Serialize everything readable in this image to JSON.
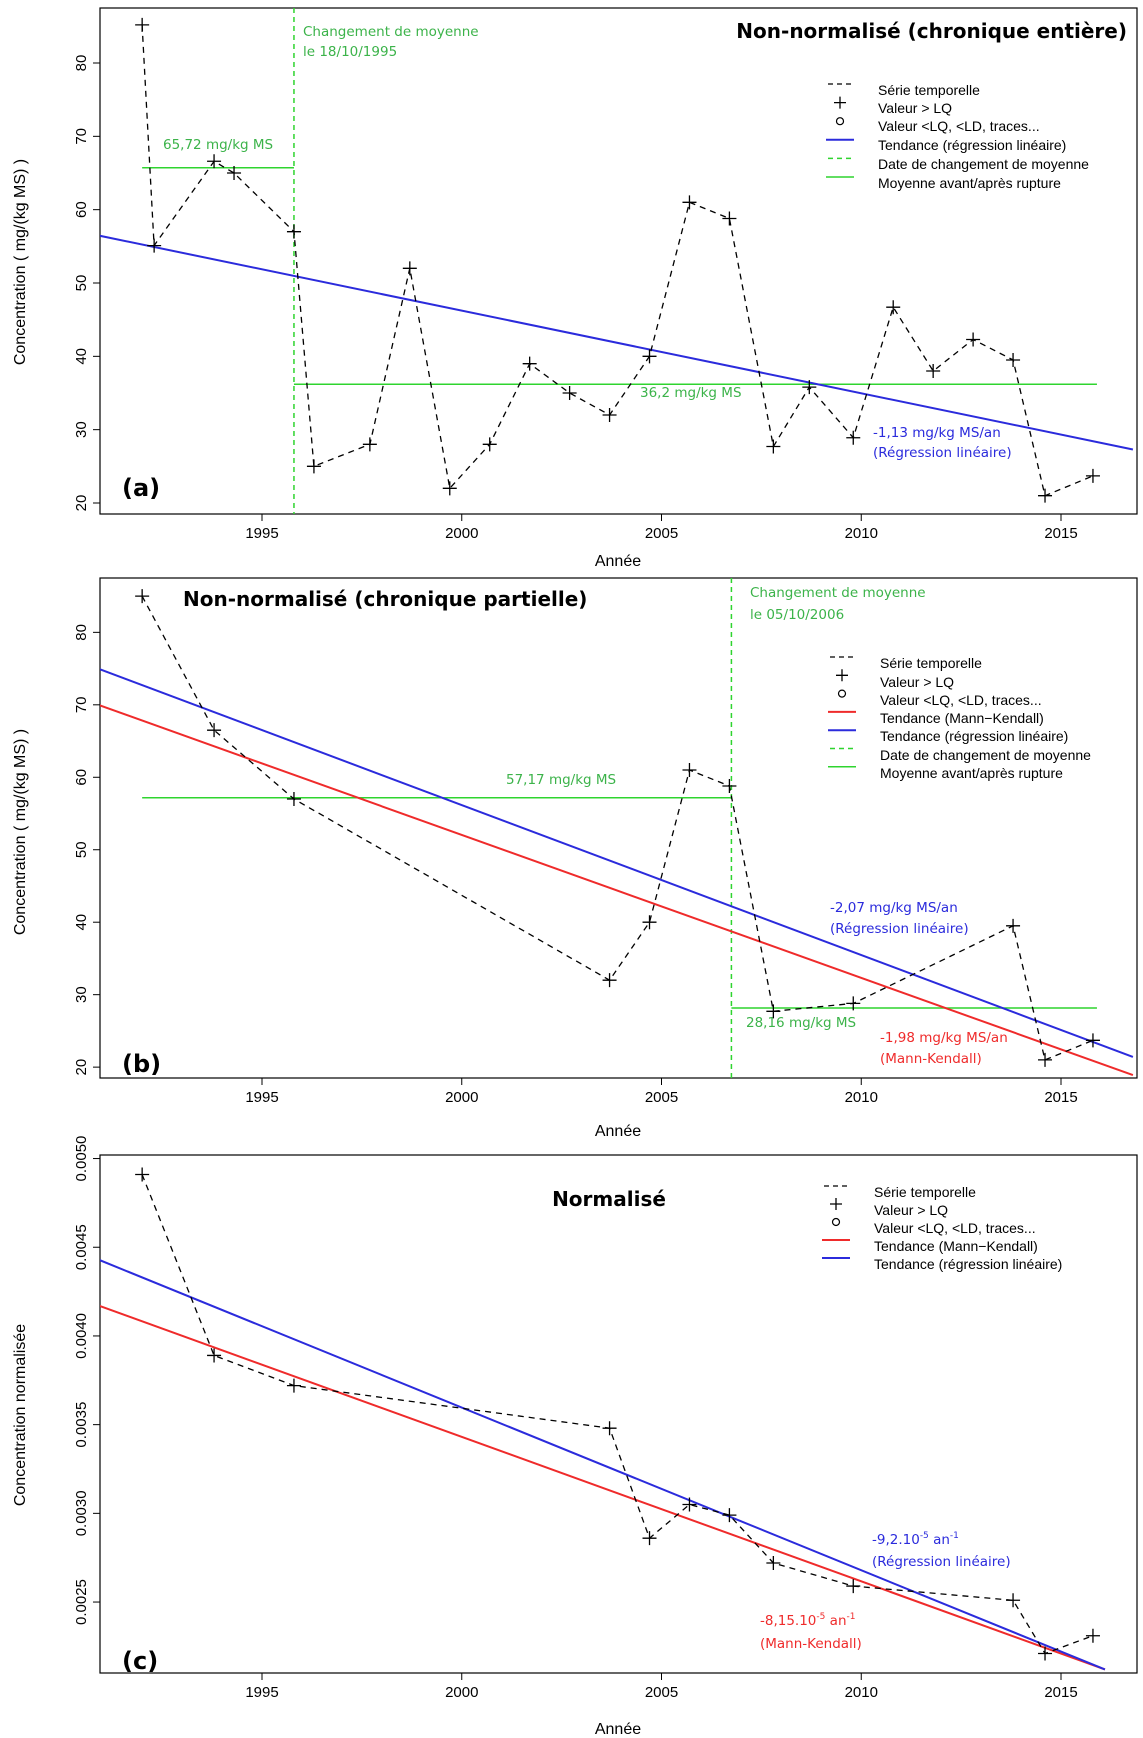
{
  "colors": {
    "series": "#000000",
    "regression": "#2b2bdc",
    "mann_kendall": "#ef2b2b",
    "change_point": "#2fd42f",
    "mean_line": "#2fd42f",
    "annotation_green": "#3cb34a",
    "annotation_blue": "#2b2bdc",
    "annotation_red": "#ef2b2b"
  },
  "chart_data": [
    {
      "type": "line",
      "panel_label": "(a)",
      "title": "Non-normalisé (chronique entière)",
      "xlabel": "Année",
      "ylabel": "Concentration  ( mg/(kg MS) )",
      "xlim": [
        1990.8,
        2016.8
      ],
      "ylim": [
        18.5,
        87.5
      ],
      "xticks": [
        1995,
        2000,
        2005,
        2010,
        2015
      ],
      "yticks": [
        20,
        30,
        40,
        50,
        60,
        70,
        80
      ],
      "ytick_labels": [
        "20",
        "30",
        "40",
        "50",
        "60",
        "70",
        "80"
      ],
      "series": [
        {
          "name": "Série temporelle",
          "x": [
            1992.0,
            1992.3,
            1993.8,
            1994.3,
            1995.8,
            1996.3,
            1997.7,
            1998.7,
            1999.7,
            2000.7,
            2001.7,
            2002.7,
            2003.7,
            2004.7,
            2005.7,
            2006.7,
            2007.8,
            2008.7,
            2009.8,
            2010.8,
            2011.8,
            2012.8,
            2013.8,
            2014.6,
            2015.8
          ],
          "y": [
            85.2,
            55.1,
            66.6,
            65.0,
            57.0,
            25.0,
            28.0,
            52.0,
            22.0,
            28.0,
            39.0,
            35.0,
            32.0,
            40.0,
            61.0,
            58.8,
            27.7,
            35.8,
            28.9,
            46.7,
            38.0,
            42.3,
            39.5,
            21.0,
            23.7
          ]
        }
      ],
      "regression": {
        "x": [
          1990.8,
          2016.8
        ],
        "y": [
          56.6,
          27.3
        ]
      },
      "change_point": {
        "x": 1995.8,
        "label_line1": "Changement de moyenne",
        "label_line2": "le 18/10/1995"
      },
      "means": [
        {
          "x": [
            1992.0,
            1995.8
          ],
          "y": 65.72,
          "label": "65,72 mg/kg MS"
        },
        {
          "x": [
            1995.8,
            2015.9
          ],
          "y": 36.2,
          "label": "36,2 mg/kg MS"
        }
      ],
      "slope_labels": [
        {
          "line1": "-1,13 mg/kg MS/an",
          "line2": "(Régression linéaire)",
          "color": "blue"
        }
      ],
      "legend": [
        {
          "label": "Série temporelle",
          "kind": "dash-black"
        },
        {
          "label": "Valeur > LQ",
          "kind": "plus"
        },
        {
          "label": "Valeur <LQ, <LD, traces...",
          "kind": "circle"
        },
        {
          "label": "Tendance (régression linéaire)",
          "kind": "line-blue"
        },
        {
          "label": "Date de changement de moyenne",
          "kind": "dash-green"
        },
        {
          "label": "Moyenne avant/après rupture",
          "kind": "line-green"
        }
      ]
    },
    {
      "type": "line",
      "panel_label": "(b)",
      "title": "Non-normalisé (chronique partielle)",
      "xlabel": "Année",
      "ylabel": "Concentration  ( mg/(kg MS) )",
      "xlim": [
        1990.8,
        2016.8
      ],
      "ylim": [
        18.5,
        87.5
      ],
      "xticks": [
        1995,
        2000,
        2005,
        2010,
        2015
      ],
      "yticks": [
        20,
        30,
        40,
        50,
        60,
        70,
        80
      ],
      "ytick_labels": [
        "20",
        "30",
        "40",
        "50",
        "60",
        "70",
        "80"
      ],
      "series": [
        {
          "name": "Série temporelle",
          "x": [
            1992.0,
            1993.8,
            1995.8,
            2003.7,
            2004.7,
            2005.7,
            2006.7,
            2007.8,
            2009.8,
            2013.8,
            2014.6,
            2015.8
          ],
          "y": [
            85.0,
            66.5,
            57.0,
            32.0,
            40.0,
            61.0,
            58.8,
            27.7,
            28.8,
            39.5,
            21.0,
            23.7
          ]
        }
      ],
      "regression": {
        "x": [
          1990.8,
          2016.8
        ],
        "y": [
          75.2,
          21.4
        ]
      },
      "mann_kendall": {
        "x": [
          1990.8,
          2016.8
        ],
        "y": [
          70.2,
          18.9
        ]
      },
      "change_point": {
        "x": 2006.75,
        "label_line1": "Changement de moyenne",
        "label_line2": "le 05/10/2006"
      },
      "means": [
        {
          "x": [
            1992.0,
            2006.75
          ],
          "y": 57.17,
          "label": "57,17 mg/kg MS"
        },
        {
          "x": [
            2006.75,
            2015.9
          ],
          "y": 28.16,
          "label": "28,16 mg/kg MS"
        }
      ],
      "slope_labels": [
        {
          "line1": "-2,07 mg/kg MS/an",
          "line2": "(Régression linéaire)",
          "color": "blue"
        },
        {
          "line1": "-1,98 mg/kg MS/an",
          "line2": "(Mann-Kendall)",
          "color": "red"
        }
      ],
      "legend": [
        {
          "label": "Série temporelle",
          "kind": "dash-black"
        },
        {
          "label": "Valeur > LQ",
          "kind": "plus"
        },
        {
          "label": "Valeur <LQ, <LD, traces...",
          "kind": "circle"
        },
        {
          "label": "Tendance (Mann−Kendall)",
          "kind": "line-red"
        },
        {
          "label": "Tendance (régression linéaire)",
          "kind": "line-blue"
        },
        {
          "label": "Date de changement de moyenne",
          "kind": "dash-green"
        },
        {
          "label": "Moyenne avant/après rupture",
          "kind": "line-green"
        }
      ]
    },
    {
      "type": "line",
      "panel_label": "(c)",
      "title": "Normalisé",
      "xlabel": "Année",
      "ylabel": "Concentration normalisée",
      "xlim": [
        1990.8,
        2016.8
      ],
      "ylim": [
        0.0021,
        0.00502
      ],
      "xticks": [
        1995,
        2000,
        2005,
        2010,
        2015
      ],
      "yticks": [
        0.0025,
        0.003,
        0.0035,
        0.004,
        0.0045,
        0.005
      ],
      "ytick_labels": [
        "0.0025",
        "0.0030",
        "0.0035",
        "0.0040",
        "0.0045",
        "0.0050"
      ],
      "series": [
        {
          "name": "Série temporelle",
          "x": [
            1992.0,
            1993.8,
            1995.8,
            2003.7,
            2004.7,
            2005.7,
            2006.7,
            2007.8,
            2009.8,
            2013.8,
            2014.6,
            2015.8
          ],
          "y": [
            0.00491,
            0.00389,
            0.00372,
            0.00348,
            0.00286,
            0.00305,
            0.00299,
            0.00272,
            0.00259,
            0.00251,
            0.00221,
            0.00231
          ]
        }
      ],
      "regression": {
        "x": [
          1990.8,
          2016.1
        ],
        "y": [
          0.00444,
          0.00212
        ]
      },
      "mann_kendall": {
        "x": [
          1990.8,
          2016.1
        ],
        "y": [
          0.00418,
          0.00212
        ]
      },
      "slope_labels": [
        {
          "line1": "-9,2.10",
          "sup1": "-5",
          "mid": " an",
          "sup2": "-1",
          "line2": "(Régression linéaire)",
          "color": "blue"
        },
        {
          "line1": "-8,15.10",
          "sup1": "-5",
          "mid": " an",
          "sup2": "-1",
          "line2": "(Mann-Kendall)",
          "color": "red"
        }
      ],
      "legend": [
        {
          "label": "Série temporelle",
          "kind": "dash-black"
        },
        {
          "label": "Valeur > LQ",
          "kind": "plus"
        },
        {
          "label": "Valeur <LQ, <LD, traces...",
          "kind": "circle"
        },
        {
          "label": "Tendance (Mann−Kendall)",
          "kind": "line-red"
        },
        {
          "label": "Tendance (régression linéaire)",
          "kind": "line-blue"
        }
      ]
    }
  ]
}
